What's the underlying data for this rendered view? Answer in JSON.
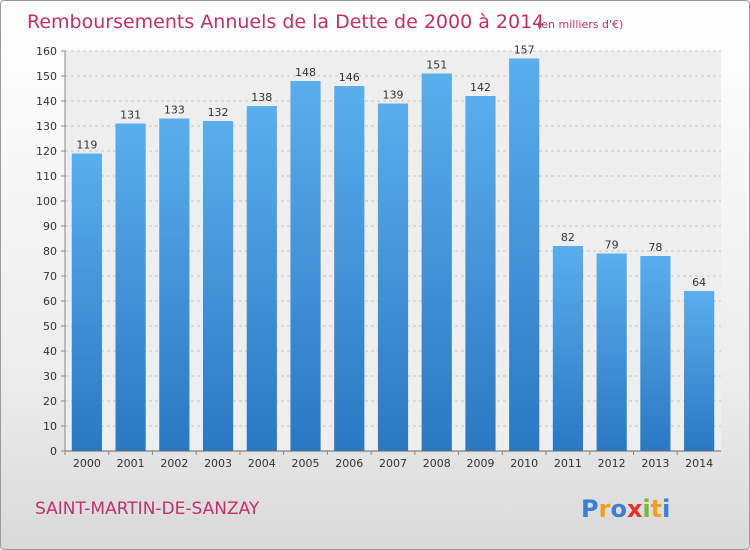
{
  "chart_data": {
    "type": "bar",
    "title": "Remboursements Annuels de la Dette de 2000 à 2014",
    "subtitle": "(en milliers d'€)",
    "categories": [
      "2000",
      "2001",
      "2002",
      "2003",
      "2004",
      "2005",
      "2006",
      "2007",
      "2008",
      "2009",
      "2010",
      "2011",
      "2012",
      "2013",
      "2014"
    ],
    "values": [
      119,
      131,
      133,
      132,
      138,
      148,
      146,
      139,
      151,
      142,
      157,
      82,
      79,
      78,
      64
    ],
    "ylim": [
      0,
      160
    ],
    "yticks": [
      0,
      10,
      20,
      30,
      40,
      50,
      60,
      70,
      80,
      90,
      100,
      110,
      120,
      130,
      140,
      150,
      160
    ],
    "xlabel": "",
    "ylabel": "",
    "grid": true,
    "bar_color": "#3e8fd8"
  },
  "footer": {
    "commune": "SAINT-MARTIN-DE-SANZAY",
    "brand": "Proxiti",
    "brand_letters": [
      {
        "ch": "P",
        "color": "#3a7fd0"
      },
      {
        "ch": "r",
        "color": "#f0a020"
      },
      {
        "ch": "o",
        "color": "#3a7fd0"
      },
      {
        "ch": "x",
        "color": "#e8302a"
      },
      {
        "ch": "i",
        "color": "#7ab82e"
      },
      {
        "ch": "t",
        "color": "#f0a020"
      },
      {
        "ch": "i",
        "color": "#3a7fd0"
      }
    ]
  }
}
